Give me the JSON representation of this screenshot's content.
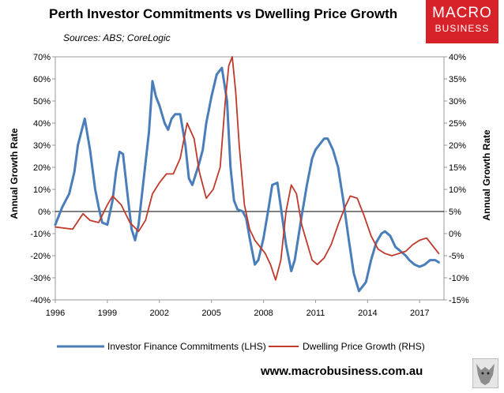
{
  "header": {
    "title": "Perth Investor Commitments vs Dwelling Price Growth",
    "sources": "Sources: ABS; CoreLogic"
  },
  "logo": {
    "line1": "MACRO",
    "line2": "BUSINESS",
    "color": "#d8222a"
  },
  "footer": {
    "website": "www.macrobusiness.com.au"
  },
  "chart_data": {
    "type": "line",
    "title": "Perth Investor Commitments vs Dwelling Price Growth",
    "ylabel_left": "Annual Growth Rate",
    "ylabel_right": "Annual Growth Rate",
    "xlim": [
      1996,
      2018.4
    ],
    "ylim_left": [
      -40,
      70
    ],
    "ylim_right": [
      -15,
      40
    ],
    "x_ticks": [
      "1996",
      "1999",
      "2002",
      "2005",
      "2008",
      "2011",
      "2014",
      "2017"
    ],
    "y_left_ticks": [
      "70%",
      "60%",
      "50%",
      "40%",
      "30%",
      "20%",
      "10%",
      "0%",
      "-10%",
      "-20%",
      "-30%",
      "-40%"
    ],
    "y_right_ticks": [
      "40%",
      "35%",
      "30%",
      "25%",
      "20%",
      "15%",
      "10%",
      "5%",
      "0%",
      "-5%",
      "-10%",
      "-15%"
    ],
    "legend": [
      "Investor Finance Commitments (LHS)",
      "Dwelling Price Growth (RHS)"
    ],
    "series": [
      {
        "name": "Investor Finance Commitments (LHS)",
        "axis": "left",
        "color": "#4a7ebb",
        "x": [
          1996.0,
          1996.4,
          1996.8,
          1997.1,
          1997.3,
          1997.5,
          1997.7,
          1998.0,
          1998.3,
          1998.5,
          1998.7,
          1999.0,
          1999.3,
          1999.5,
          1999.7,
          1999.9,
          2000.2,
          2000.4,
          2000.6,
          2000.8,
          2001.1,
          2001.4,
          2001.6,
          2001.8,
          2002.0,
          2002.3,
          2002.5,
          2002.7,
          2002.9,
          2003.2,
          2003.5,
          2003.7,
          2003.9,
          2004.1,
          2004.3,
          2004.5,
          2004.7,
          2005.0,
          2005.3,
          2005.6,
          2005.9,
          2006.1,
          2006.3,
          2006.5,
          2006.8,
          2007.0,
          2007.2,
          2007.5,
          2007.7,
          2008.0,
          2008.3,
          2008.5,
          2008.8,
          2009.0,
          2009.3,
          2009.6,
          2009.8,
          2010.0,
          2010.2,
          2010.5,
          2010.8,
          2011.0,
          2011.2,
          2011.5,
          2011.7,
          2012.0,
          2012.3,
          2012.6,
          2012.9,
          2013.2,
          2013.5,
          2013.9,
          2014.2,
          2014.5,
          2014.8,
          2015.0,
          2015.3,
          2015.6,
          2015.9,
          2016.2,
          2016.4,
          2016.7,
          2017.0,
          2017.3,
          2017.6,
          2017.9,
          2018.1
        ],
        "y": [
          -6,
          2,
          8,
          18,
          30,
          36,
          42,
          28,
          10,
          2,
          -5,
          -6,
          5,
          18,
          27,
          26,
          5,
          -8,
          -13,
          -6,
          15,
          36,
          59,
          52,
          48,
          40,
          37,
          42,
          44,
          44,
          30,
          15,
          12,
          17,
          22,
          28,
          40,
          52,
          62,
          65,
          50,
          20,
          5,
          1,
          0,
          -3,
          -12,
          -24,
          -22,
          -12,
          2,
          12,
          13,
          2,
          -15,
          -27,
          -22,
          -12,
          -2,
          12,
          24,
          28,
          30,
          33,
          33,
          28,
          20,
          5,
          -12,
          -28,
          -36,
          -32,
          -22,
          -14,
          -10,
          -9,
          -11,
          -16,
          -18,
          -20,
          -22,
          -24,
          -25,
          -24,
          -22,
          -22,
          -23
        ],
        "note": "approx shape; see script for dense path"
      },
      {
        "name": "Dwelling Price Growth (RHS)",
        "axis": "right",
        "color": "#c0392b",
        "x": [
          1996.0,
          1997.0,
          1997.6,
          1998.0,
          1998.5,
          1999.0,
          1999.3,
          1999.8,
          2000.3,
          2000.8,
          2001.2,
          2001.6,
          2002.0,
          2002.4,
          2002.8,
          2003.2,
          2003.6,
          2004.0,
          2004.3,
          2004.7,
          2005.1,
          2005.5,
          2005.8,
          2006.0,
          2006.2,
          2006.4,
          2006.6,
          2006.9,
          2007.2,
          2007.5,
          2007.8,
          2008.1,
          2008.4,
          2008.7,
          2009.0,
          2009.3,
          2009.6,
          2009.9,
          2010.2,
          2010.5,
          2010.8,
          2011.1,
          2011.5,
          2011.9,
          2012.3,
          2012.7,
          2013.0,
          2013.4,
          2013.8,
          2014.2,
          2014.6,
          2015.0,
          2015.4,
          2015.8,
          2016.2,
          2016.6,
          2017.0,
          2017.4,
          2017.8,
          2018.1
        ],
        "y": [
          1.5,
          1.0,
          4.5,
          3.0,
          2.5,
          6.5,
          8.5,
          6.5,
          2.5,
          0.5,
          3.0,
          9.0,
          11.5,
          13.5,
          13.5,
          17.0,
          25.0,
          21.5,
          14.0,
          8.0,
          10.0,
          15.0,
          30.0,
          38.0,
          40.0,
          32.0,
          20.0,
          6.5,
          1.0,
          -1.5,
          -3.0,
          -4.5,
          -7.0,
          -10.5,
          -6.0,
          5.0,
          11.0,
          9.0,
          2.0,
          -2.0,
          -6.0,
          -7.0,
          -5.5,
          -2.5,
          2.0,
          6.0,
          8.5,
          8.0,
          4.0,
          -0.5,
          -3.5,
          -4.5,
          -5.0,
          -4.5,
          -4.0,
          -2.5,
          -1.5,
          -1.0,
          -3.0,
          -4.5
        ]
      }
    ]
  }
}
